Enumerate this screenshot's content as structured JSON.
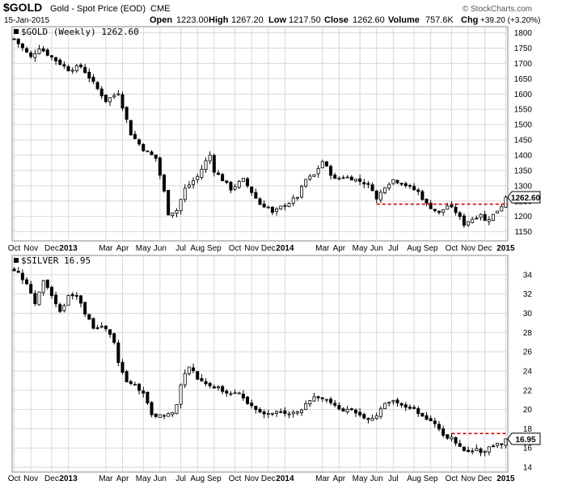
{
  "header": {
    "symbol": "$GOLD",
    "description": "Gold - Spot Price (EOD)",
    "exchange": "CME",
    "date": "15-Jan-2015",
    "open_label": "Open",
    "open": "1223.00",
    "high_label": "High",
    "high": "1267.20",
    "low_label": "Low",
    "low": "1217.50",
    "close_label": "Close",
    "close": "1262.60",
    "volume_label": "Volume",
    "volume": "757.6K",
    "chg_label": "Chg",
    "chg": "+39.20 (+3.20%)",
    "watermark": "© StockCharts.com"
  },
  "colors": {
    "candle": "#000000",
    "grid": "#d8d8d8",
    "resistance": "#d40000",
    "background": "#ffffff",
    "panel_border": "#888888",
    "price_tag_bg": "#ffffff"
  },
  "chart_data": [
    {
      "type": "candlestick",
      "title": "$GOLD (Weekly) 1262.60",
      "series_name": "$GOLD (Weekly)",
      "last_value": "1262.60",
      "ylim": [
        1120,
        1820
      ],
      "yticks": [
        1150,
        1200,
        1250,
        1300,
        1350,
        1400,
        1450,
        1500,
        1550,
        1600,
        1650,
        1700,
        1750,
        1800
      ],
      "grid": true,
      "x_labels": [
        "Oct",
        "Nov",
        "Dec",
        "2013",
        "Mar",
        "Apr",
        "May",
        "Jun",
        "Jul",
        "Aug",
        "Sep",
        "Oct",
        "Nov",
        "Dec",
        "2014",
        "Mar",
        "Apr",
        "May",
        "Jun",
        "Jul",
        "Aug",
        "Sep",
        "Oct",
        "Nov",
        "Dec",
        "2015"
      ],
      "x_label_weeks": [
        0,
        4,
        9,
        13,
        22,
        26,
        31,
        35,
        40,
        44,
        48,
        53,
        57,
        61,
        65,
        74,
        78,
        83,
        87,
        91,
        96,
        100,
        105,
        109,
        113,
        118
      ],
      "resistance_level": 1240,
      "resistance_from_week": 87,
      "close_path": [
        [
          0,
          1780
        ],
        [
          4,
          1720
        ],
        [
          6,
          1752
        ],
        [
          9,
          1720
        ],
        [
          13,
          1680
        ],
        [
          16,
          1690
        ],
        [
          18,
          1655
        ],
        [
          22,
          1578
        ],
        [
          25,
          1605
        ],
        [
          26,
          1560
        ],
        [
          28,
          1470
        ],
        [
          31,
          1420
        ],
        [
          34,
          1390
        ],
        [
          36,
          1280
        ],
        [
          37,
          1210
        ],
        [
          39,
          1220
        ],
        [
          41,
          1290
        ],
        [
          44,
          1330
        ],
        [
          46,
          1380
        ],
        [
          47,
          1400
        ],
        [
          48,
          1350
        ],
        [
          50,
          1320
        ],
        [
          52,
          1290
        ],
        [
          55,
          1320
        ],
        [
          57,
          1280
        ],
        [
          59,
          1240
        ],
        [
          61,
          1230
        ],
        [
          62,
          1210
        ],
        [
          64,
          1230
        ],
        [
          66,
          1245
        ],
        [
          68,
          1265
        ],
        [
          70,
          1320
        ],
        [
          72,
          1335
        ],
        [
          74,
          1380
        ],
        [
          75,
          1360
        ],
        [
          77,
          1320
        ],
        [
          79,
          1330
        ],
        [
          81,
          1325
        ],
        [
          84,
          1310
        ],
        [
          86,
          1290
        ],
        [
          87,
          1255
        ],
        [
          89,
          1300
        ],
        [
          91,
          1320
        ],
        [
          93,
          1310
        ],
        [
          95,
          1295
        ],
        [
          97,
          1280
        ],
        [
          99,
          1240
        ],
        [
          101,
          1220
        ],
        [
          102,
          1210
        ],
        [
          104,
          1235
        ],
        [
          105,
          1225
        ],
        [
          106,
          1215
        ],
        [
          108,
          1175
        ],
        [
          109,
          1185
        ],
        [
          111,
          1200
        ],
        [
          112,
          1210
        ],
        [
          113,
          1185
        ],
        [
          115,
          1205
        ],
        [
          116,
          1220
        ],
        [
          117,
          1235
        ],
        [
          118,
          1262.6
        ]
      ]
    },
    {
      "type": "candlestick",
      "title": "$SILVER 16.95",
      "series_name": "$SILVER",
      "last_value": "16.95",
      "ylim": [
        13.5,
        36
      ],
      "yticks": [
        14,
        16,
        18,
        20,
        22,
        24,
        26,
        28,
        30,
        32,
        34
      ],
      "grid": true,
      "x_labels": [
        "Oct",
        "Nov",
        "Dec",
        "2013",
        "Mar",
        "Apr",
        "May",
        "Jun",
        "Jul",
        "Aug",
        "Sep",
        "Oct",
        "Nov",
        "Dec",
        "2014",
        "Mar",
        "Apr",
        "May",
        "Jun",
        "Jul",
        "Aug",
        "Sep",
        "Oct",
        "Nov",
        "Dec",
        "2015"
      ],
      "x_label_weeks": [
        0,
        4,
        9,
        13,
        22,
        26,
        31,
        35,
        40,
        44,
        48,
        53,
        57,
        61,
        65,
        74,
        78,
        83,
        87,
        91,
        96,
        100,
        105,
        109,
        113,
        118
      ],
      "resistance_level": 17.5,
      "resistance_from_week": 105,
      "close_path": [
        [
          0,
          34.6
        ],
        [
          3,
          33.2
        ],
        [
          5,
          31.0
        ],
        [
          7,
          33.5
        ],
        [
          9,
          31.8
        ],
        [
          11,
          30.0
        ],
        [
          13,
          31.8
        ],
        [
          15,
          32.0
        ],
        [
          17,
          30.0
        ],
        [
          19,
          28.5
        ],
        [
          22,
          28.4
        ],
        [
          24,
          27.0
        ],
        [
          25,
          24.8
        ],
        [
          27,
          22.8
        ],
        [
          29,
          22.5
        ],
        [
          31,
          21.5
        ],
        [
          33,
          19.5
        ],
        [
          34,
          19.3
        ],
        [
          36,
          19.5
        ],
        [
          38,
          19.6
        ],
        [
          39,
          20.5
        ],
        [
          40,
          22.7
        ],
        [
          42,
          24.6
        ],
        [
          44,
          23.2
        ],
        [
          46,
          22.8
        ],
        [
          48,
          22.3
        ],
        [
          50,
          22.0
        ],
        [
          52,
          21.5
        ],
        [
          54,
          21.8
        ],
        [
          56,
          20.6
        ],
        [
          58,
          20.0
        ],
        [
          60,
          19.6
        ],
        [
          62,
          19.5
        ],
        [
          64,
          19.8
        ],
        [
          66,
          19.4
        ],
        [
          68,
          19.9
        ],
        [
          70,
          20.4
        ],
        [
          72,
          21.5
        ],
        [
          74,
          21.3
        ],
        [
          76,
          20.7
        ],
        [
          78,
          20.1
        ],
        [
          80,
          19.9
        ],
        [
          82,
          19.7
        ],
        [
          84,
          19.3
        ],
        [
          86,
          19.0
        ],
        [
          87,
          19.4
        ],
        [
          89,
          20.5
        ],
        [
          91,
          21.0
        ],
        [
          93,
          20.6
        ],
        [
          95,
          20.1
        ],
        [
          97,
          19.7
        ],
        [
          99,
          18.9
        ],
        [
          101,
          18.4
        ],
        [
          102,
          17.8
        ],
        [
          104,
          17.2
        ],
        [
          105,
          17.2
        ],
        [
          106,
          16.6
        ],
        [
          107,
          16.0
        ],
        [
          108,
          15.7
        ],
        [
          110,
          15.8
        ],
        [
          111,
          16.0
        ],
        [
          112,
          15.5
        ],
        [
          113,
          15.8
        ],
        [
          114,
          16.2
        ],
        [
          115,
          16.0
        ],
        [
          116,
          16.3
        ],
        [
          117,
          16.5
        ],
        [
          118,
          16.95
        ]
      ]
    }
  ]
}
